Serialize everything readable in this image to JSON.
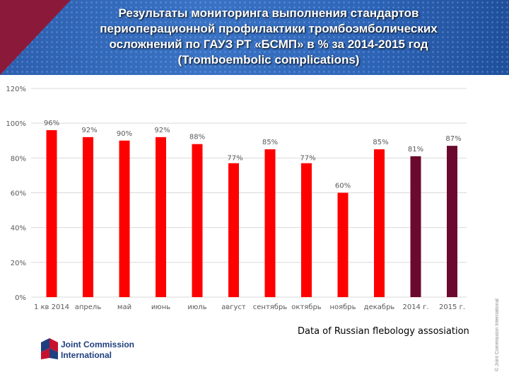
{
  "title": "Результаты мониторинга выполнения стандартов периоперационной профилактики тромбоэмболических осложнений по ГАУЗ РТ «БСМП» в % за 2014-2015 год (Tromboembolic complications)",
  "source": "Data of Russian flebology assosiation",
  "copyright": "© Joint Commission International",
  "logo": {
    "line1": "Joint Commission",
    "line2": "International"
  },
  "colors": {
    "monthly": "#ff0000",
    "yearly": "#6b0a2e",
    "grid": "#d9d9d9",
    "labels": "#595959"
  },
  "chart_data": {
    "type": "bar",
    "categories": [
      "1 кв 2014",
      "апрель",
      "май",
      "июнь",
      "июль",
      "август",
      "сентябрь",
      "октябрь",
      "ноябрь",
      "декабрь",
      "2014 г.",
      "2015 г."
    ],
    "values": [
      96,
      92,
      90,
      92,
      88,
      77,
      85,
      77,
      60,
      85,
      81,
      87
    ],
    "data_labels": [
      "96%",
      "92%",
      "90%",
      "92%",
      "88%",
      "77%",
      "85%",
      "77%",
      "60%",
      "85%",
      "81%",
      "87%"
    ],
    "yearly_indices": [
      10,
      11
    ],
    "ylim": [
      0,
      120
    ],
    "yticks": [
      0,
      20,
      40,
      60,
      80,
      100,
      120
    ],
    "ytick_labels": [
      "0%",
      "20%",
      "40%",
      "60%",
      "80%",
      "100%",
      "120%"
    ],
    "grid": true,
    "xlabel": "",
    "ylabel": ""
  }
}
